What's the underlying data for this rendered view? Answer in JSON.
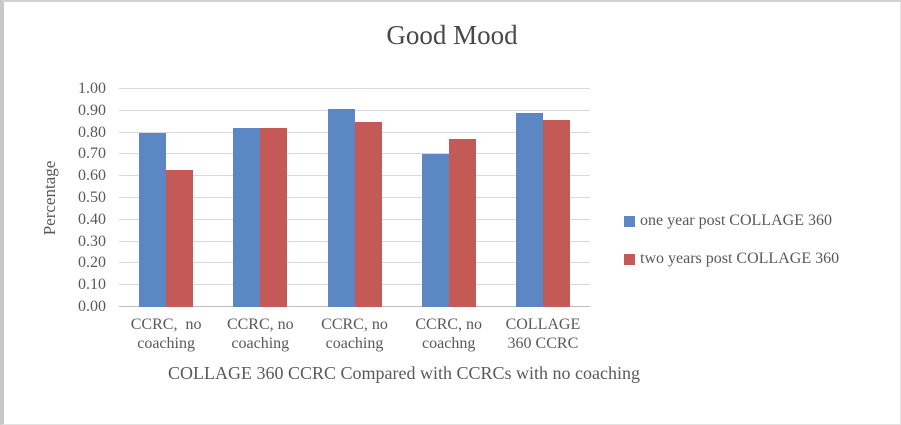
{
  "chart_data": {
    "type": "bar",
    "title": "Good Mood",
    "categories": [
      "CCRC,  no\ncoaching",
      "CCRC, no\ncoaching",
      "CCRC, no\ncoaching",
      "CCRC, no\ncoachng",
      "COLLAGE\n360 CCRC"
    ],
    "series": [
      {
        "name": "one year post COLLAGE 360",
        "color": "#5b88c5",
        "values": [
          0.8,
          0.82,
          0.91,
          0.7,
          0.89
        ]
      },
      {
        "name": "two years post COLLAGE 360",
        "color": "#c45a55",
        "values": [
          0.63,
          0.82,
          0.85,
          0.77,
          0.86
        ]
      }
    ],
    "xlabel": "COLLAGE 360 CCRC Compared with CCRCs with no coaching",
    "ylabel": "Percentage",
    "ylim": [
      0.0,
      1.0
    ],
    "y_ticks": [
      "0.00",
      "0.10",
      "0.20",
      "0.30",
      "0.40",
      "0.50",
      "0.60",
      "0.70",
      "0.80",
      "0.90",
      "1.00"
    ],
    "grid": true,
    "legend_position": "right",
    "colors": {
      "gridline": "#d9d9d9",
      "axis_line": "#bfbfbf",
      "text": "#595959"
    }
  }
}
